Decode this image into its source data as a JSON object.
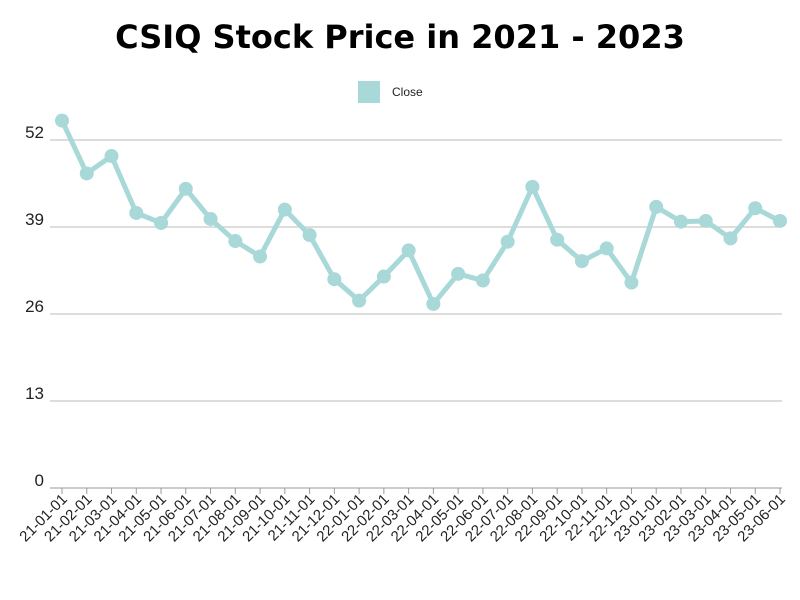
{
  "chart_data": {
    "type": "line",
    "title": "CSIQ Stock Price in 2021 - 2023",
    "xlabel": "",
    "ylabel": "",
    "ylim": [
      0,
      52
    ],
    "yticks": [
      0,
      13,
      26,
      39,
      52
    ],
    "legend_position": "top-center",
    "grid": true,
    "categories": [
      "21-01-01",
      "21-02-01",
      "21-03-01",
      "21-04-01",
      "21-05-01",
      "21-06-01",
      "21-07-01",
      "21-08-01",
      "21-09-01",
      "21-10-01",
      "21-11-01",
      "21-12-01",
      "22-01-01",
      "22-02-01",
      "22-03-01",
      "22-04-01",
      "22-05-01",
      "22-06-01",
      "22-07-01",
      "22-08-01",
      "22-09-01",
      "22-10-01",
      "22-11-01",
      "22-12-01",
      "23-01-01",
      "23-02-01",
      "23-03-01",
      "23-04-01",
      "23-05-01",
      "23-06-01"
    ],
    "series": [
      {
        "name": "Close",
        "color": "#a8d8d8",
        "values": [
          54.9,
          47.0,
          49.6,
          41.1,
          39.6,
          44.7,
          40.2,
          36.9,
          34.6,
          41.6,
          37.8,
          31.2,
          28.0,
          31.6,
          35.5,
          27.5,
          32.0,
          31.0,
          36.8,
          45.0,
          37.1,
          33.9,
          35.8,
          30.7,
          42.0,
          39.8,
          39.9,
          37.3,
          41.8,
          39.9
        ]
      }
    ]
  }
}
